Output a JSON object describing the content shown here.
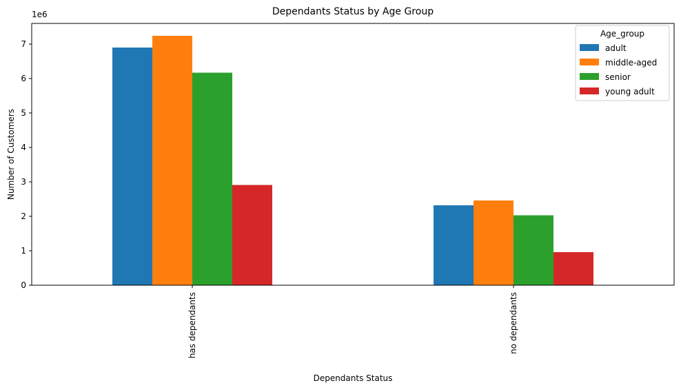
{
  "chart_data": {
    "type": "bar",
    "title": "Dependants Status by Age Group",
    "xlabel": "Dependants Status",
    "ylabel": "Number of Customers",
    "y_offset_label": "1e6",
    "categories": [
      "has dependants",
      "no dependants"
    ],
    "series": [
      {
        "name": "adult",
        "values": [
          6900000,
          2320000
        ],
        "color": "#1f77b4"
      },
      {
        "name": "middle-aged",
        "values": [
          7240000,
          2460000
        ],
        "color": "#ff7f0e"
      },
      {
        "name": "senior",
        "values": [
          6170000,
          2030000
        ],
        "color": "#2ca02c"
      },
      {
        "name": "young adult",
        "values": [
          2910000,
          960000
        ],
        "color": "#d62728"
      }
    ],
    "ylim": [
      0,
      7600000
    ],
    "y_ticks": [
      0,
      1,
      2,
      3,
      4,
      5,
      6,
      7
    ],
    "legend": {
      "title": "Age_group",
      "placement": "top-right"
    },
    "grid": false
  }
}
